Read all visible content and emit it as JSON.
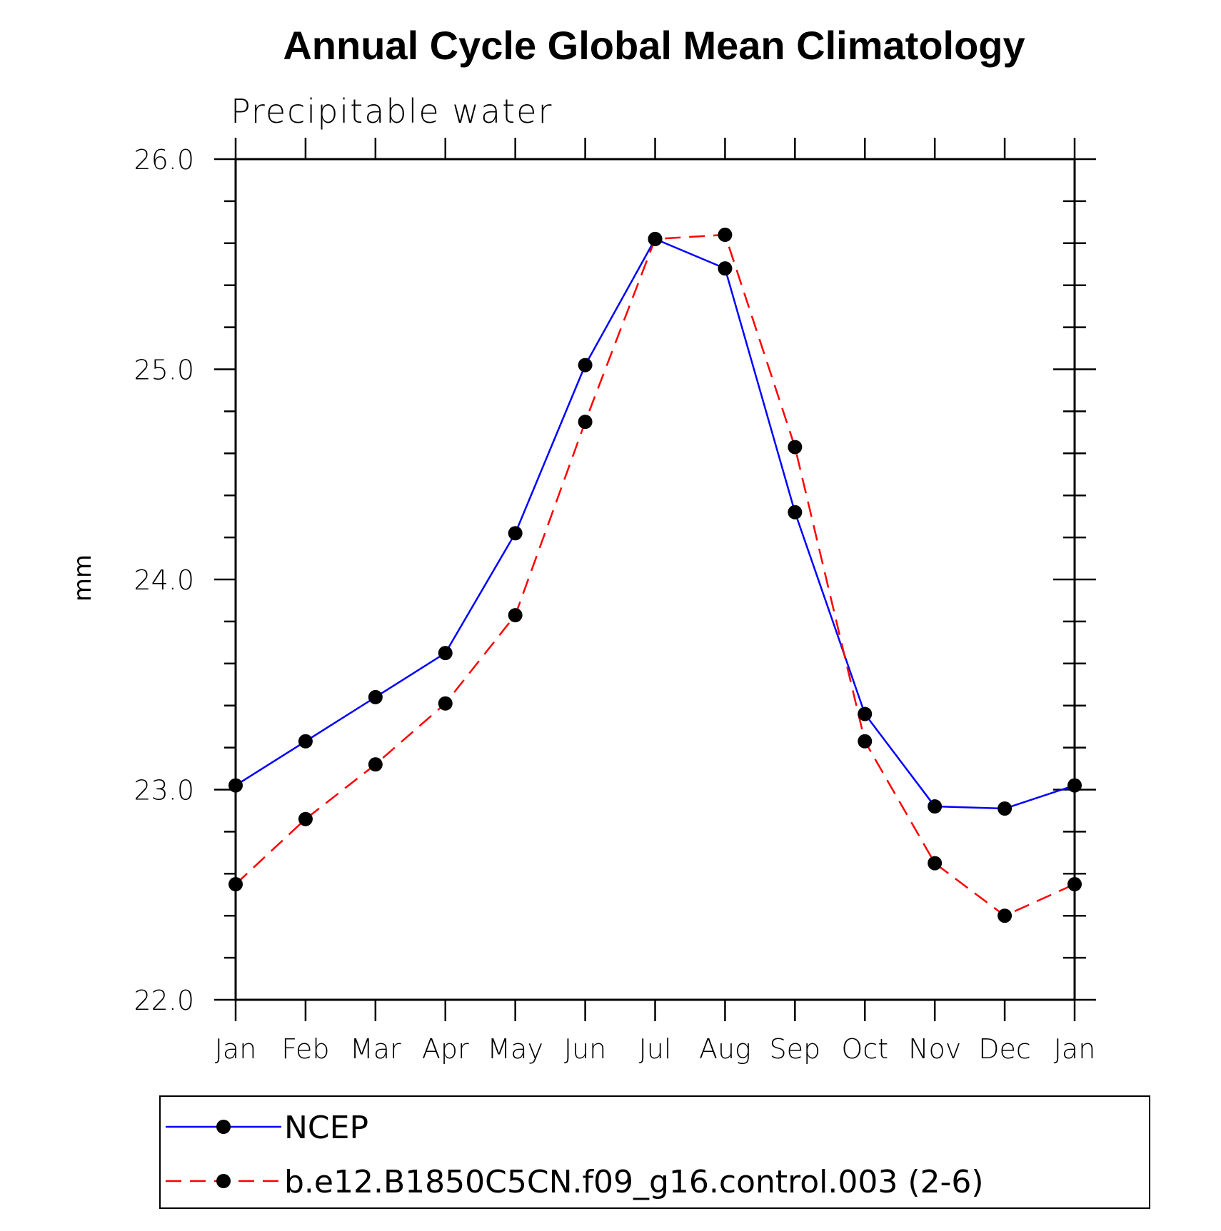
{
  "chart_data": {
    "type": "line",
    "title": "Annual Cycle Global Mean Climatology",
    "subtitle": "Precipitable water",
    "xlabel": "",
    "ylabel": "mm",
    "categories": [
      "Jan",
      "Feb",
      "Mar",
      "Apr",
      "May",
      "Jun",
      "Jul",
      "Aug",
      "Sep",
      "Oct",
      "Nov",
      "Dec",
      "Jan"
    ],
    "yticks": [
      "22.0",
      "23.0",
      "24.0",
      "25.0",
      "26.0"
    ],
    "ylim": [
      22.0,
      26.0
    ],
    "yminor_step": 0.2,
    "grid": false,
    "legend_position": "bottom",
    "series": [
      {
        "name": "NCEP",
        "color": "#0000ff",
        "line_style": "solid",
        "marker": "filled-circle",
        "values": [
          23.02,
          23.23,
          23.44,
          23.65,
          24.22,
          25.02,
          25.62,
          25.48,
          24.32,
          23.36,
          22.92,
          22.91,
          23.02
        ]
      },
      {
        "name": "b.e12.B1850C5CN.f09_g16.control.003 (2-6)",
        "color": "#ff0000",
        "line_style": "dashed",
        "marker": "filled-circle",
        "values": [
          22.55,
          22.86,
          23.12,
          23.41,
          23.83,
          24.75,
          25.62,
          25.64,
          24.63,
          23.23,
          22.65,
          22.4,
          22.55
        ]
      }
    ]
  }
}
